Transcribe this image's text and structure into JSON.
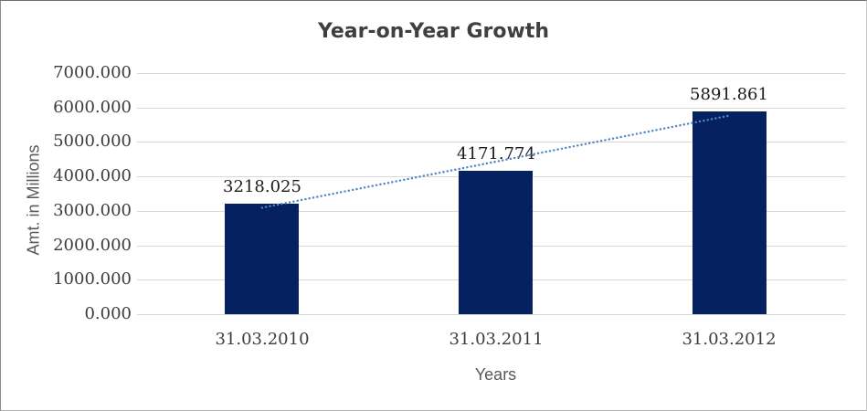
{
  "chart_data": {
    "type": "bar",
    "title": "Year-on-Year Growth",
    "categories": [
      "31.03.2010",
      "31.03.2011",
      "31.03.2012"
    ],
    "values": [
      3218.025,
      4171.774,
      5891.861
    ],
    "data_labels": [
      "3218.025",
      "4171.774",
      "5891.861"
    ],
    "xlabel": "Years",
    "ylabel": "Amt. in Millions",
    "ylim": [
      0,
      7000
    ],
    "ytick_interval": 1000,
    "ytick_labels": [
      "7000.000",
      "6000.000",
      "5000.000",
      "4000.000",
      "3000.000",
      "2000.000",
      "1000.000",
      "0.000"
    ],
    "grid": "horizontal",
    "legend": "none",
    "trendline": {
      "type": "linear",
      "style": "dotted",
      "series": "values"
    },
    "colors": {
      "bar": "#05215f",
      "trendline": "#4f87c5",
      "gridline": "#d9d9d9",
      "title": "#3f3f3f",
      "axis_title": "#595959",
      "tick_label": "#3d3d3d",
      "data_label": "#1c1c1c",
      "background": "#ffffff"
    }
  }
}
